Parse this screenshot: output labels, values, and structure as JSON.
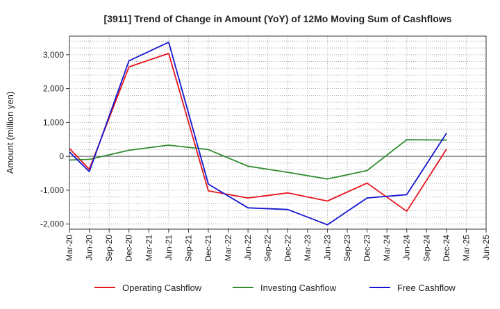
{
  "chart_data": {
    "type": "line",
    "title": "[3911]  Trend of Change in Amount (YoY) of 12Mo Moving Sum of Cashflows",
    "xlabel": "",
    "ylabel": "Amount (million yen)",
    "ylim": [
      -2150,
      3550
    ],
    "yticks": [
      -2000,
      -1000,
      0,
      1000,
      2000,
      3000
    ],
    "ytick_labels": [
      "-2,000",
      "-1,000",
      "0",
      "1,000",
      "2,000",
      "3,000"
    ],
    "categories": [
      "Mar-20",
      "Jun-20",
      "Sep-20",
      "Dec-20",
      "Mar-21",
      "Jun-21",
      "Sep-21",
      "Dec-21",
      "Mar-22",
      "Jun-22",
      "Sep-22",
      "Dec-22",
      "Mar-23",
      "Jun-23",
      "Sep-23",
      "Dec-23",
      "Mar-24",
      "Jun-24",
      "Sep-24",
      "Dec-24",
      "Mar-25",
      "Jun-25"
    ],
    "series": [
      {
        "name": "Operating Cashflow",
        "color": "#e8141e",
        "values": [
          230,
          -380,
          null,
          2640,
          null,
          3040,
          null,
          -1020,
          null,
          -1230,
          null,
          -1080,
          null,
          -1320,
          null,
          -790,
          null,
          -1620,
          null,
          210,
          null,
          null
        ]
      },
      {
        "name": "Investing Cashflow",
        "color": "#2e8b2e",
        "values": [
          -110,
          -90,
          null,
          180,
          null,
          330,
          null,
          200,
          null,
          -290,
          null,
          -470,
          null,
          -670,
          null,
          -420,
          null,
          490,
          null,
          480,
          null,
          null
        ]
      },
      {
        "name": "Free Cashflow",
        "color": "#1414d2",
        "values": [
          130,
          -450,
          null,
          2820,
          null,
          3370,
          null,
          -820,
          null,
          -1520,
          null,
          -1570,
          null,
          -2020,
          null,
          -1230,
          null,
          -1130,
          null,
          680,
          null,
          null
        ]
      }
    ],
    "grid": true,
    "legend_position": "bottom"
  }
}
